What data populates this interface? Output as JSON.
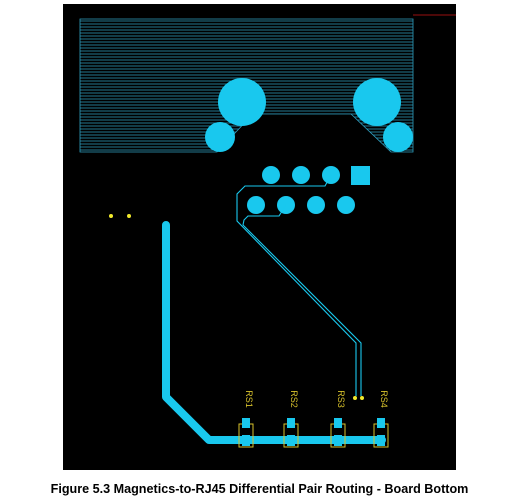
{
  "figure": {
    "caption": "Figure 5.3 Magnetics-to-RJ45 Differential Pair Routing - Board Bottom"
  },
  "colors": {
    "board_background": "#000000",
    "copper": "#19c8ee",
    "hatch_pour": "#2f9fc0",
    "silkscreen": "#d8c22c",
    "edge_line": "#9a1010"
  },
  "silkscreen_labels": [
    "RS1",
    "RS2",
    "RS3",
    "RS4"
  ]
}
